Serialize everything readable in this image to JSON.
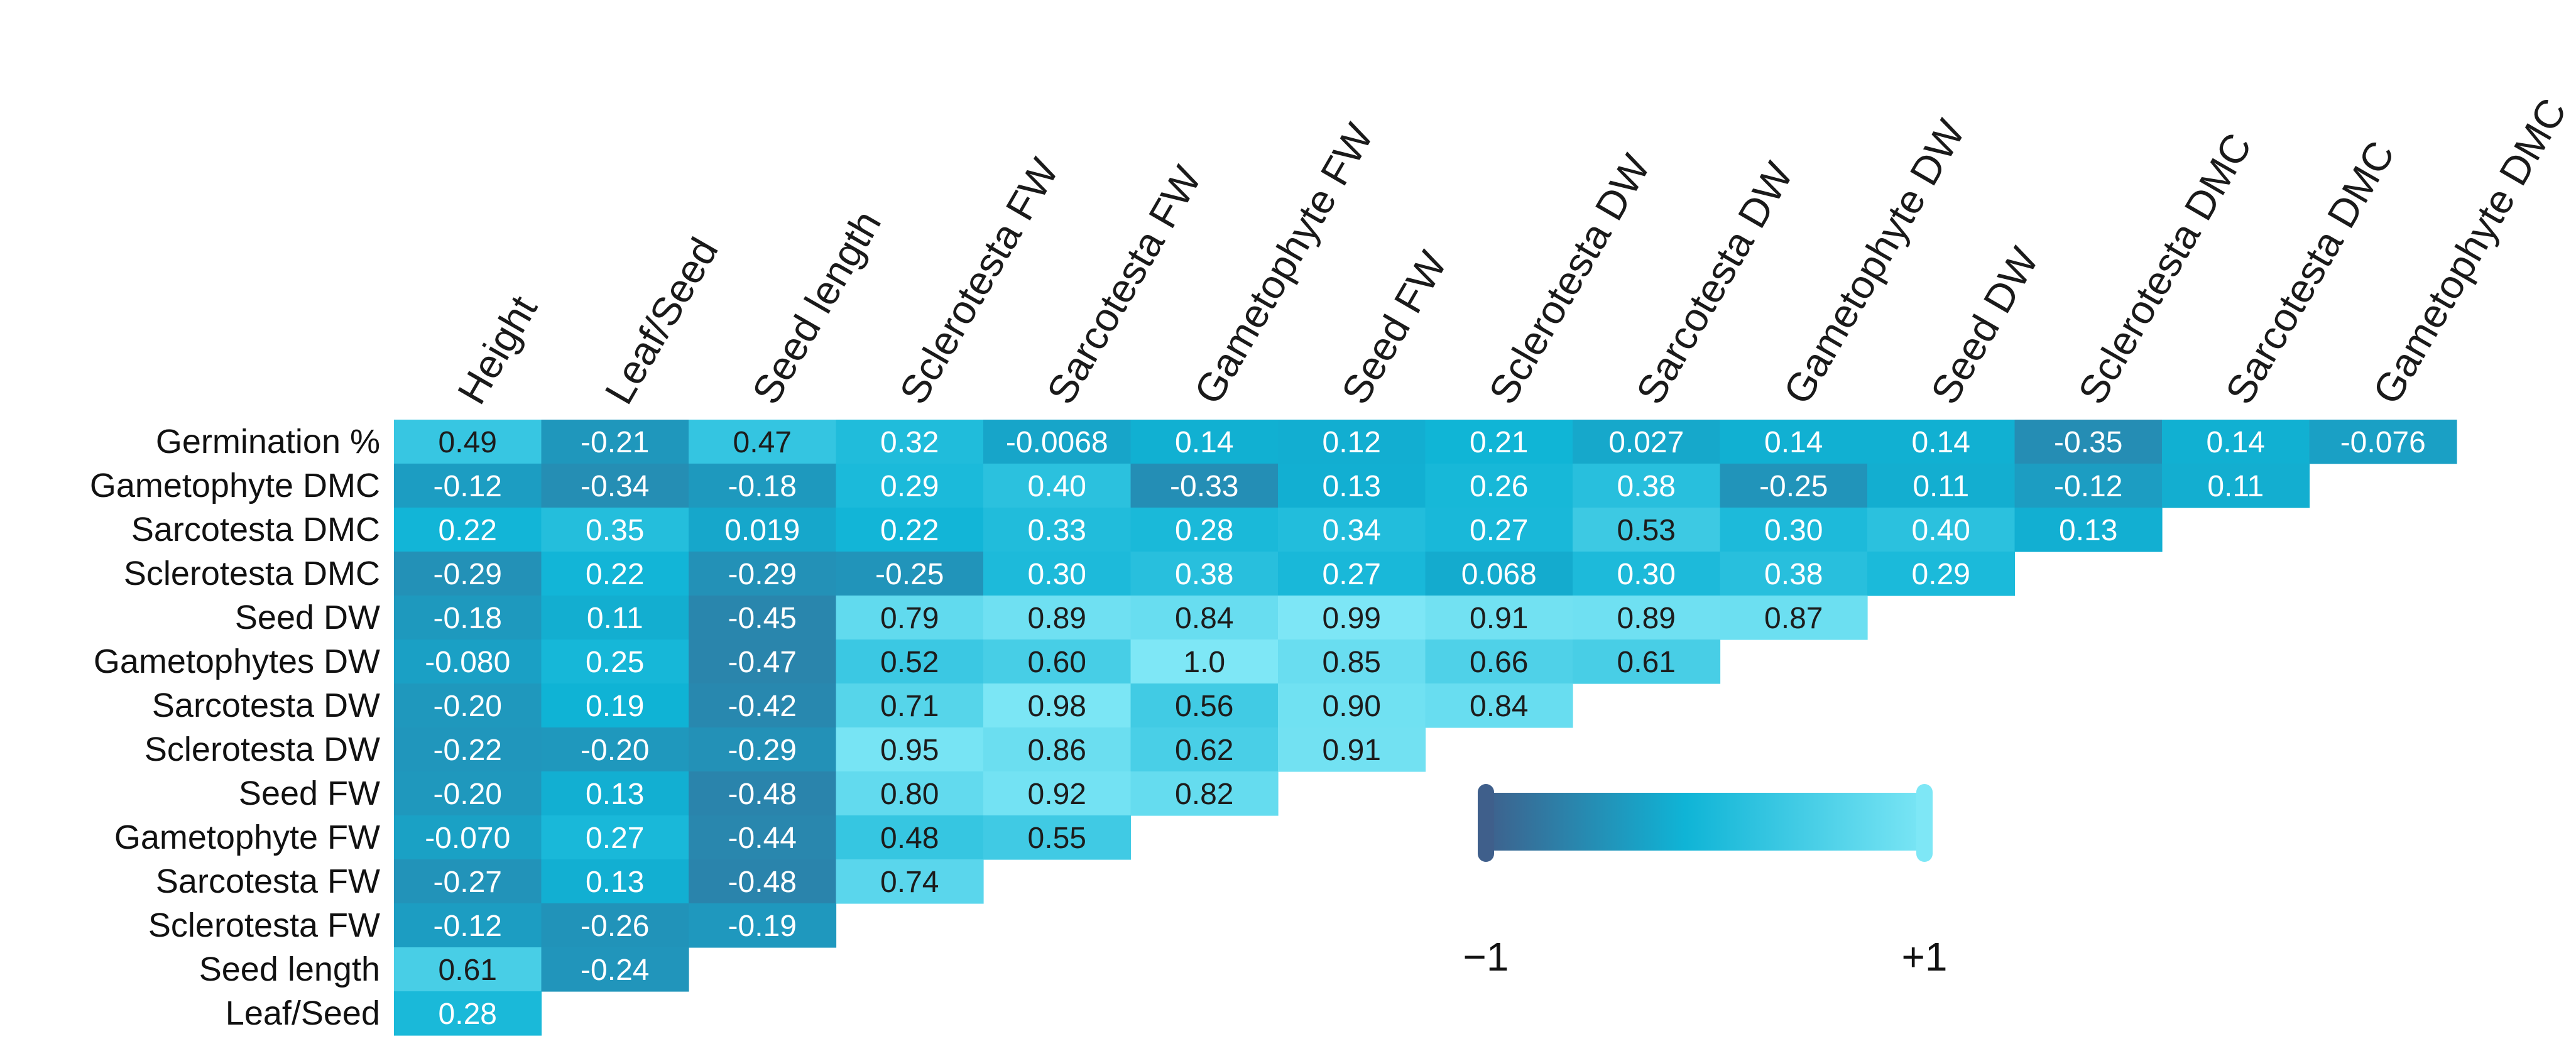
{
  "chart_data": {
    "type": "heatmap",
    "title": "",
    "row_labels": [
      "Germination %",
      "Gametophyte DMC",
      "Sarcotesta DMC",
      "Sclerotesta DMC",
      "Seed DW",
      "Gametophytes DW",
      "Sarcotesta DW",
      "Sclerotesta DW",
      "Seed FW",
      "Gametophyte FW",
      "Sarcotesta FW",
      "Sclerotesta FW",
      "Seed length",
      "Leaf/Seed"
    ],
    "column_labels": [
      "Height",
      "Leaf/Seed",
      "Seed length",
      "Sclerotesta FW",
      "Sarcotesta FW",
      "Gametophyte FW",
      "Seed FW",
      "Sclerotesta DW",
      "Sarcotesta DW",
      "Gametophyte DW",
      "Seed DW",
      "Sclerotesta DMC",
      "Sarcotesta DMC",
      "Gametophyte DMC"
    ],
    "values": [
      [
        "0.49",
        "-0.21",
        "0.47",
        "0.32",
        "-0.0068",
        "0.14",
        "0.12",
        "0.21",
        "0.027",
        "0.14",
        "0.14",
        "-0.35",
        "0.14",
        "-0.076"
      ],
      [
        "-0.12",
        "-0.34",
        "-0.18",
        "0.29",
        "0.40",
        "-0.33",
        "0.13",
        "0.26",
        "0.38",
        "-0.25",
        "0.11",
        "-0.12",
        "0.11"
      ],
      [
        "0.22",
        "0.35",
        "0.019",
        "0.22",
        "0.33",
        "0.28",
        "0.34",
        "0.27",
        "0.53",
        "0.30",
        "0.40",
        "0.13"
      ],
      [
        "-0.29",
        "0.22",
        "-0.29",
        "-0.25",
        "0.30",
        "0.38",
        "0.27",
        "0.068",
        "0.30",
        "0.38",
        "0.29"
      ],
      [
        "-0.18",
        "0.11",
        "-0.45",
        "0.79",
        "0.89",
        "0.84",
        "0.99",
        "0.91",
        "0.89",
        "0.87"
      ],
      [
        "-0.080",
        "0.25",
        "-0.47",
        "0.52",
        "0.60",
        "1.0",
        "0.85",
        "0.66",
        "0.61"
      ],
      [
        "-0.20",
        "0.19",
        "-0.42",
        "0.71",
        "0.98",
        "0.56",
        "0.90",
        "0.84"
      ],
      [
        "-0.22",
        "-0.20",
        "-0.29",
        "0.95",
        "0.86",
        "0.62",
        "0.91"
      ],
      [
        "-0.20",
        "0.13",
        "-0.48",
        "0.80",
        "0.92",
        "0.82"
      ],
      [
        "-0.070",
        "0.27",
        "-0.44",
        "0.48",
        "0.55"
      ],
      [
        "-0.27",
        "0.13",
        "-0.48",
        "0.74"
      ],
      [
        "-0.12",
        "-0.26",
        "-0.19"
      ],
      [
        "0.61",
        "-0.24"
      ],
      [
        "0.28"
      ]
    ],
    "color_scale": {
      "min": -1,
      "max": 1,
      "min_label": "−1",
      "max_label": "+1",
      "colors": [
        "#3f5f8b",
        "#0fb4d6",
        "#7ee7f6"
      ]
    },
    "xlabel": "",
    "ylabel": ""
  }
}
